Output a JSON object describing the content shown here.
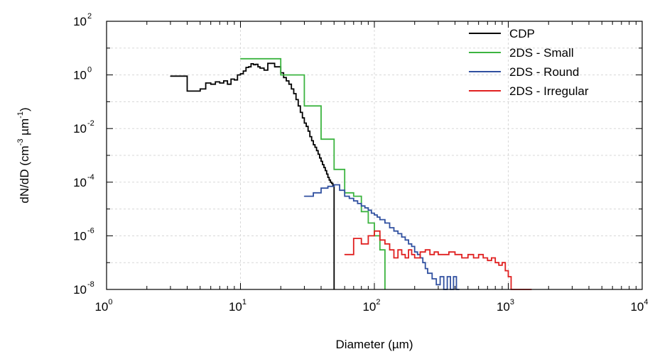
{
  "chart_data": {
    "type": "line",
    "x_scale": "log",
    "y_scale": "log",
    "xlim": [
      1,
      10000
    ],
    "ylim": [
      1e-08,
      100
    ],
    "xlabel": "Diameter (µm)",
    "ylabel": {
      "base": "dN/dD (cm",
      "exp1": "-3",
      "mid": " µm",
      "exp2": "-1",
      "end": ")"
    },
    "x_ticks": [
      {
        "base": "10",
        "exp": "0",
        "value": 1
      },
      {
        "base": "10",
        "exp": "1",
        "value": 10
      },
      {
        "base": "10",
        "exp": "2",
        "value": 100
      },
      {
        "base": "10",
        "exp": "3",
        "value": 1000
      },
      {
        "base": "10",
        "exp": "4",
        "value": 10000
      }
    ],
    "y_ticks": [
      {
        "base": "10",
        "exp": "2",
        "value": 100
      },
      {
        "base": "10",
        "exp": "0",
        "value": 1
      },
      {
        "base": "10",
        "exp": "-2",
        "value": 0.01
      },
      {
        "base": "10",
        "exp": "-4",
        "value": 0.0001
      },
      {
        "base": "10",
        "exp": "-6",
        "value": 1e-06
      },
      {
        "base": "10",
        "exp": "-8",
        "value": 1e-08
      }
    ],
    "grid": true,
    "legend_position": "top-right",
    "series": [
      {
        "name": "CDP",
        "color": "#000000",
        "x": [
          3,
          4,
          5,
          5.5,
          6,
          6.5,
          7,
          7.5,
          8,
          8.5,
          9,
          9.5,
          10,
          10.5,
          11,
          11.5,
          12,
          12.5,
          13,
          13.5,
          14,
          15,
          16,
          17,
          18,
          19,
          20,
          21,
          22,
          23,
          24,
          25,
          26,
          27,
          28,
          29,
          30,
          31,
          32,
          33,
          34,
          35,
          36,
          37,
          38,
          39,
          40,
          41,
          42,
          43,
          44,
          45,
          46,
          47,
          48,
          49,
          50,
          50
        ],
        "y": [
          0.9,
          0.25,
          0.3,
          0.5,
          0.45,
          0.55,
          0.5,
          0.6,
          0.45,
          0.7,
          0.65,
          1.0,
          1.1,
          1.4,
          1.9,
          2.0,
          2.6,
          2.4,
          2.5,
          2.0,
          1.8,
          1.5,
          2.7,
          2.7,
          2.0,
          2.0,
          1.2,
          0.8,
          0.6,
          0.45,
          0.3,
          0.2,
          0.12,
          0.07,
          0.04,
          0.025,
          0.016,
          0.012,
          0.008,
          0.005,
          0.0035,
          0.0025,
          0.002,
          0.0015,
          0.0011,
          0.0008,
          0.0006,
          0.00045,
          0.00035,
          0.00027,
          0.0002,
          0.00015,
          0.00012,
          0.0001,
          9e-05,
          7e-05,
          6e-05,
          1e-08
        ]
      },
      {
        "name": "2DS - Small",
        "color": "#3cb440",
        "x": [
          10,
          20,
          30,
          40,
          50,
          60,
          70,
          80,
          90,
          100,
          110,
          120,
          120
        ],
        "y": [
          4.0,
          1.0,
          0.07,
          0.004,
          0.0003,
          4e-05,
          3e-05,
          8e-06,
          3e-06,
          1e-06,
          3e-07,
          1e-07,
          1e-08
        ]
      },
      {
        "name": "2DS - Round",
        "color": "#3050a0",
        "x": [
          30,
          35,
          40,
          45,
          50,
          55,
          60,
          65,
          70,
          75,
          80,
          85,
          90,
          95,
          100,
          105,
          110,
          120,
          130,
          140,
          150,
          160,
          170,
          180,
          190,
          200,
          210,
          220,
          230,
          240,
          250,
          270,
          290,
          310,
          330,
          350,
          370,
          390,
          410
        ],
        "y": [
          3e-05,
          4e-05,
          6e-05,
          7e-05,
          8e-05,
          5e-05,
          3e-05,
          2.5e-05,
          2e-05,
          1.6e-05,
          1.3e-05,
          1.1e-05,
          9e-06,
          7e-06,
          6e-06,
          5e-06,
          4e-06,
          3e-06,
          2e-06,
          1.5e-06,
          1.2e-06,
          9e-07,
          7e-07,
          5e-07,
          4e-07,
          2.5e-07,
          2e-07,
          1.5e-07,
          1e-07,
          6e-08,
          4e-08,
          2.5e-08,
          1.5e-08,
          3e-08,
          1e-08,
          3e-08,
          1e-08,
          3e-08,
          1e-08
        ]
      },
      {
        "name": "2DS - Irregular",
        "color": "#e02020",
        "x": [
          60,
          70,
          80,
          90,
          100,
          110,
          120,
          130,
          140,
          150,
          160,
          170,
          180,
          190,
          200,
          220,
          240,
          260,
          280,
          300,
          330,
          360,
          400,
          450,
          500,
          550,
          600,
          650,
          700,
          750,
          800,
          850,
          900,
          950,
          1000,
          1050,
          1100,
          1300
        ],
        "y": [
          2e-07,
          8e-07,
          5e-07,
          1e-06,
          1.5e-06,
          7e-07,
          5e-07,
          3e-07,
          1.5e-07,
          3e-07,
          2e-07,
          1.5e-07,
          3e-07,
          2e-07,
          1.5e-07,
          2.5e-07,
          3e-07,
          2e-07,
          2.5e-07,
          2e-07,
          2e-07,
          2.5e-07,
          2e-07,
          1.5e-07,
          2e-07,
          1.5e-07,
          2e-07,
          1.5e-07,
          1.2e-07,
          1.5e-07,
          1e-07,
          8e-08,
          1e-07,
          5e-08,
          3e-08,
          1e-08,
          1e-08,
          1e-08
        ]
      }
    ]
  }
}
